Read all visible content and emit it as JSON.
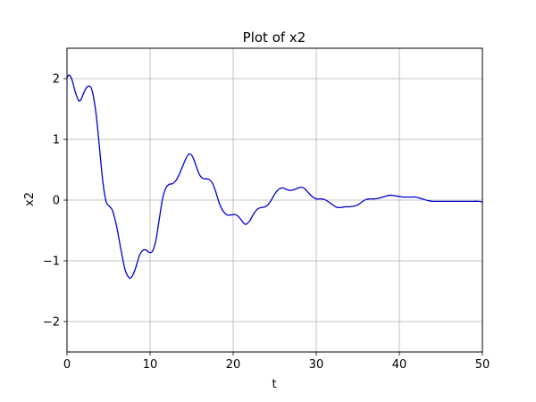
{
  "chart_data": {
    "type": "line",
    "title": "Plot of x2",
    "xlabel": "t",
    "ylabel": "x2",
    "xlim": [
      0,
      50
    ],
    "ylim": [
      -2.5,
      2.5
    ],
    "xticks": [
      0,
      10,
      20,
      30,
      40,
      50
    ],
    "yticks": [
      -2,
      -1,
      0,
      1,
      2
    ],
    "xtick_labels": [
      "0",
      "10",
      "20",
      "30",
      "40",
      "50"
    ],
    "ytick_labels": [
      "−2",
      "−1",
      "0",
      "1",
      "2"
    ],
    "grid": true,
    "line_color": "#0000cc",
    "series": [
      {
        "x": [
          0,
          0.3,
          0.6,
          1.0,
          1.4,
          1.7,
          2.0,
          2.4,
          2.8,
          3.1,
          3.5,
          3.9,
          4.3,
          4.7,
          5.1,
          5.5,
          6.0,
          6.5,
          7.0,
          7.5,
          7.9,
          8.3,
          8.7,
          9.1,
          9.5,
          9.9,
          10.3,
          10.7,
          11.1,
          11.5,
          11.9,
          12.3,
          12.7,
          13.1,
          13.5,
          13.9,
          14.3,
          14.7,
          15.1,
          15.5,
          15.9,
          16.3,
          16.7,
          17.1,
          17.5,
          17.9,
          18.3,
          18.7,
          19.1,
          19.5,
          19.9,
          20.3,
          20.7,
          21.1,
          21.5,
          22.0,
          22.5,
          23.0,
          23.5,
          24.0,
          24.5,
          25.0,
          25.5,
          26.0,
          26.5,
          27.0,
          27.5,
          28.0,
          28.5,
          29.0,
          29.5,
          30.0,
          30.5,
          31.0,
          31.5,
          32.0,
          32.5,
          33.0,
          33.5,
          34.0,
          34.5,
          35.0,
          35.5,
          36.0,
          36.5,
          37.0,
          37.5,
          38.0,
          38.5,
          39.0,
          39.5,
          40.0,
          40.5,
          41.0,
          41.5,
          42.0,
          42.5,
          43.0,
          43.5,
          44.0,
          44.5,
          45.0,
          45.5,
          46.0,
          46.5,
          47.0,
          47.5,
          48.0,
          48.5,
          49.0,
          49.5,
          50.0
        ],
        "y": [
          2.02,
          2.06,
          1.98,
          1.78,
          1.64,
          1.66,
          1.76,
          1.86,
          1.87,
          1.76,
          1.42,
          0.88,
          0.32,
          -0.02,
          -0.1,
          -0.18,
          -0.45,
          -0.82,
          -1.15,
          -1.28,
          -1.24,
          -1.1,
          -0.92,
          -0.83,
          -0.82,
          -0.86,
          -0.84,
          -0.66,
          -0.32,
          0.02,
          0.2,
          0.26,
          0.27,
          0.32,
          0.42,
          0.55,
          0.68,
          0.76,
          0.72,
          0.58,
          0.43,
          0.36,
          0.35,
          0.34,
          0.28,
          0.14,
          -0.04,
          -0.16,
          -0.23,
          -0.25,
          -0.24,
          -0.24,
          -0.28,
          -0.35,
          -0.4,
          -0.34,
          -0.22,
          -0.14,
          -0.12,
          -0.1,
          -0.02,
          0.1,
          0.18,
          0.2,
          0.17,
          0.16,
          0.18,
          0.21,
          0.2,
          0.13,
          0.06,
          0.02,
          0.02,
          0.01,
          -0.03,
          -0.08,
          -0.12,
          -0.12,
          -0.11,
          -0.11,
          -0.1,
          -0.08,
          -0.03,
          0.01,
          0.02,
          0.02,
          0.03,
          0.05,
          0.07,
          0.08,
          0.07,
          0.06,
          0.05,
          0.05,
          0.05,
          0.05,
          0.03,
          0.01,
          -0.01,
          -0.02,
          -0.02,
          -0.02,
          -0.02,
          -0.02,
          -0.02,
          -0.02,
          -0.02,
          -0.02,
          -0.02,
          -0.02,
          -0.02,
          -0.03
        ]
      }
    ]
  }
}
